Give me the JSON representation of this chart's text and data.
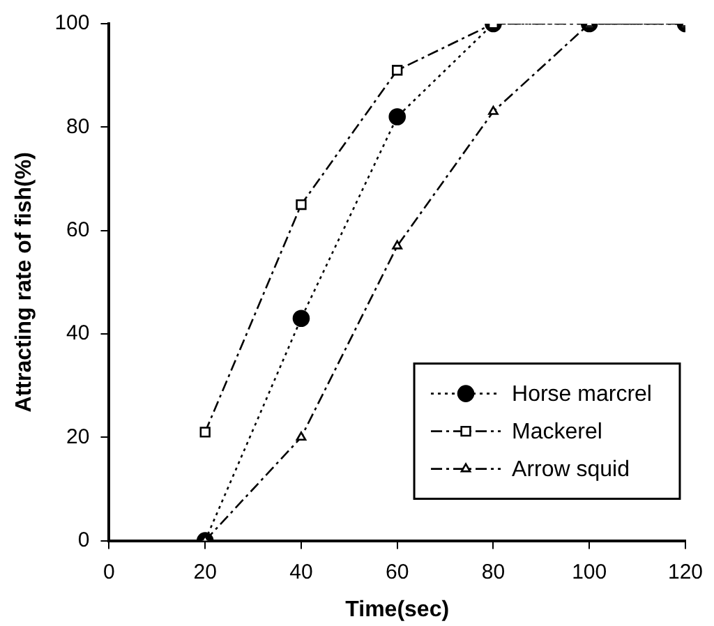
{
  "chart_data": {
    "type": "line",
    "xlabel": "Time(sec)",
    "ylabel": "Attracting rate of fish(%)",
    "x": [
      20,
      40,
      60,
      80,
      100,
      120
    ],
    "xlim": [
      0,
      120
    ],
    "xticks": [
      0,
      20,
      40,
      60,
      80,
      100,
      120
    ],
    "ylim": [
      0,
      100
    ],
    "yticks": [
      0,
      20,
      40,
      60,
      80,
      100
    ],
    "grid": false,
    "legend": "bottom right",
    "series": [
      {
        "name": "Horse marcrel",
        "color": "#000000",
        "values": [
          0,
          43,
          82,
          100,
          100,
          100
        ],
        "marker": "circle",
        "line_style": "dotted"
      },
      {
        "name": "Mackerel",
        "color": "#000000",
        "values": [
          21,
          65,
          91,
          100,
          100,
          100
        ],
        "marker": "square",
        "line_style": "dashed"
      },
      {
        "name": "Arrow squid",
        "color": "#000000",
        "values": [
          0,
          20,
          57,
          83,
          100,
          100
        ],
        "marker": "triangle",
        "line_style": "dashed"
      }
    ]
  }
}
